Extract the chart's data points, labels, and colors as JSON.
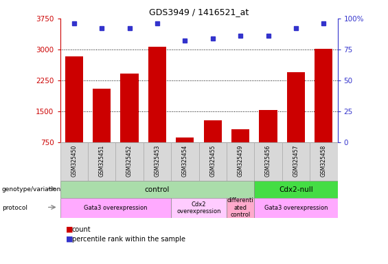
{
  "title": "GDS3949 / 1416521_at",
  "samples": [
    "GSM325450",
    "GSM325451",
    "GSM325452",
    "GSM325453",
    "GSM325454",
    "GSM325455",
    "GSM325459",
    "GSM325456",
    "GSM325457",
    "GSM325458"
  ],
  "counts": [
    2830,
    2050,
    2420,
    3060,
    870,
    1280,
    1080,
    1530,
    2450,
    3010
  ],
  "percentiles": [
    96,
    92,
    92,
    96,
    82,
    84,
    86,
    86,
    92,
    96
  ],
  "ylim_left": [
    750,
    3750
  ],
  "ylim_right": [
    0,
    100
  ],
  "yticks_left": [
    750,
    1500,
    2250,
    3000,
    3750
  ],
  "yticks_right": [
    0,
    25,
    50,
    75,
    100
  ],
  "bar_color": "#cc0000",
  "dot_color": "#3333cc",
  "left_axis_color": "#cc0000",
  "right_axis_color": "#3333cc",
  "genotype_groups": [
    {
      "label": "control",
      "start": 0,
      "end": 7,
      "color": "#aaeea a"
    },
    {
      "label": "Cdx2-null",
      "start": 7,
      "end": 10,
      "color": "#44dd44"
    }
  ],
  "protocol_groups": [
    {
      "label": "Gata3 overexpression",
      "start": 0,
      "end": 4,
      "color": "#ffaaff"
    },
    {
      "label": "Cdx2\noverexpression",
      "start": 4,
      "end": 6,
      "color": "#ffccff"
    },
    {
      "label": "differenti\nated\ncontrol",
      "start": 6,
      "end": 7,
      "color": "#ffaacc"
    },
    {
      "label": "Gata3 overexpression",
      "start": 7,
      "end": 10,
      "color": "#ffaaff"
    }
  ],
  "legend_count_color": "#cc0000",
  "legend_dot_color": "#3333cc"
}
